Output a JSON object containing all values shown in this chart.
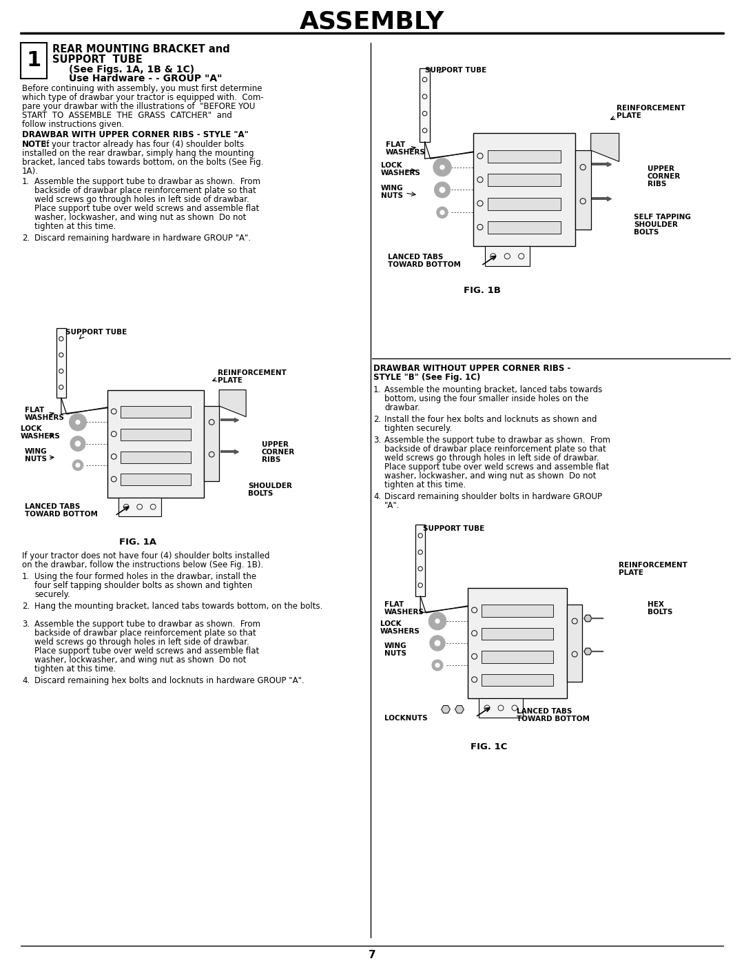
{
  "page_bg": "#ffffff",
  "title": "ASSEMBLY",
  "page_number": "7",
  "section_number": "1",
  "section_title_line1": "REAR MOUNTING BRACKET and",
  "section_title_line2": "SUPPORT  TUBE",
  "section_subtitle1": "(See Figs. 1A, 1B & 1C)",
  "section_subtitle2": "Use Hardware - - GROUP \"A\"",
  "intro_text_lines": [
    "Before continuing with assembly, you must first determine",
    "which type of drawbar your tractor is equipped with.  Com-",
    "pare your drawbar with the illustrations of  \"BEFORE YOU",
    "START  TO  ASSEMBLE  THE  GRASS  CATCHER\"  and",
    "follow instructions given."
  ],
  "style_a_header": "DRAWBAR WITH UPPER CORNER RIBS - STYLE \"A\"",
  "note_bold": "NOTE:",
  "note_rest": " If your tractor already has four (4) shoulder bolts installed on the rear drawbar, simply hang the mounting bracket, lanced tabs towards bottom, on the bolts (See Fig. 1A).",
  "step1a_lines": [
    "Assemble the support tube to drawbar as shown.  From",
    "backside of drawbar place reinforcement plate so that",
    "weld screws go through holes in left side of drawbar.",
    "Place support tube over weld screws and assemble flat",
    "washer, lockwasher, and wing nut as shown  Do not",
    "tighten at this time."
  ],
  "step2a": "Discard remaining hardware in hardware GROUP \"A\".",
  "fig1a_caption": "FIG. 1A",
  "lower_intro_lines": [
    "If your tractor does not have four (4) shoulder bolts installed",
    "on the drawbar, follow the instructions below (See Fig. 1B)."
  ],
  "step1b_lines": [
    "Using the four formed holes in the drawbar, install the",
    "four self tapping shoulder bolts as shown and tighten",
    "securely."
  ],
  "step2b": "Hang the mounting bracket, lanced tabs towards bottom, on the bolts.",
  "step3b_lines": [
    "Assemble the support tube to drawbar as shown.  From",
    "backside of drawbar place reinforcement plate so that",
    "weld screws go through holes in left side of drawbar.",
    "Place support tube over weld screws and assemble flat",
    "washer, lockwasher, and wing nut as shown  Do not",
    "tighten at this time."
  ],
  "step4b": "Discard remaining hex bolts and locknuts in hardware GROUP \"A\".",
  "fig1b_caption": "FIG. 1B",
  "style_b_header1": "DRAWBAR WITHOUT UPPER CORNER RIBS -",
  "style_b_header2": "STYLE \"B\" (See Fig. 1C)",
  "step1c": "Assemble the mounting bracket, lanced tabs towards bottom, using the four smaller inside holes on the drawbar.",
  "step2c": "Install the four hex bolts and locknuts as shown and tighten securely.",
  "step3c_lines": [
    "Assemble the support tube to drawbar as shown.  From",
    "backside of drawbar place reinforcement plate so that",
    "weld screws go through holes in left side of drawbar.",
    "Place support tube over weld screws and assemble flat",
    "washer, lockwasher, and wing nut as shown  Do not",
    "tighten at this time."
  ],
  "step4c": "Discard remaining shoulder bolts in hardware GROUP \"A\".",
  "fig1c_caption": "FIG. 1C"
}
